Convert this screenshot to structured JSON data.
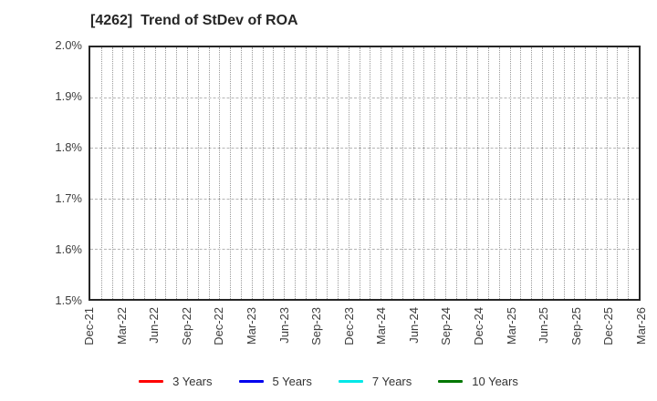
{
  "chart_data": {
    "type": "line",
    "title": "[4262]  Trend of StDev of ROA",
    "xlabel": "",
    "ylabel": "",
    "categories": [
      "Dec-21",
      "Mar-22",
      "Jun-22",
      "Sep-22",
      "Dec-22",
      "Mar-23",
      "Jun-23",
      "Sep-23",
      "Dec-23",
      "Mar-24",
      "Jun-24",
      "Sep-24",
      "Dec-24",
      "Mar-25",
      "Jun-25",
      "Sep-25",
      "Dec-25",
      "Mar-26"
    ],
    "months_between_labels": 3,
    "total_month_intervals": 51,
    "ylim": [
      1.5,
      2.0
    ],
    "yticks": [
      "2.0%",
      "1.9%",
      "1.8%",
      "1.7%",
      "1.6%",
      "1.5%"
    ],
    "grid": "on",
    "legend_position": "bottom",
    "series": [
      {
        "name": "3 Years",
        "color": "#ff0000",
        "values": []
      },
      {
        "name": "5 Years",
        "color": "#0000ee",
        "values": []
      },
      {
        "name": "7 Years",
        "color": "#00e8e8",
        "values": []
      },
      {
        "name": "10 Years",
        "color": "#007700",
        "values": []
      }
    ]
  }
}
